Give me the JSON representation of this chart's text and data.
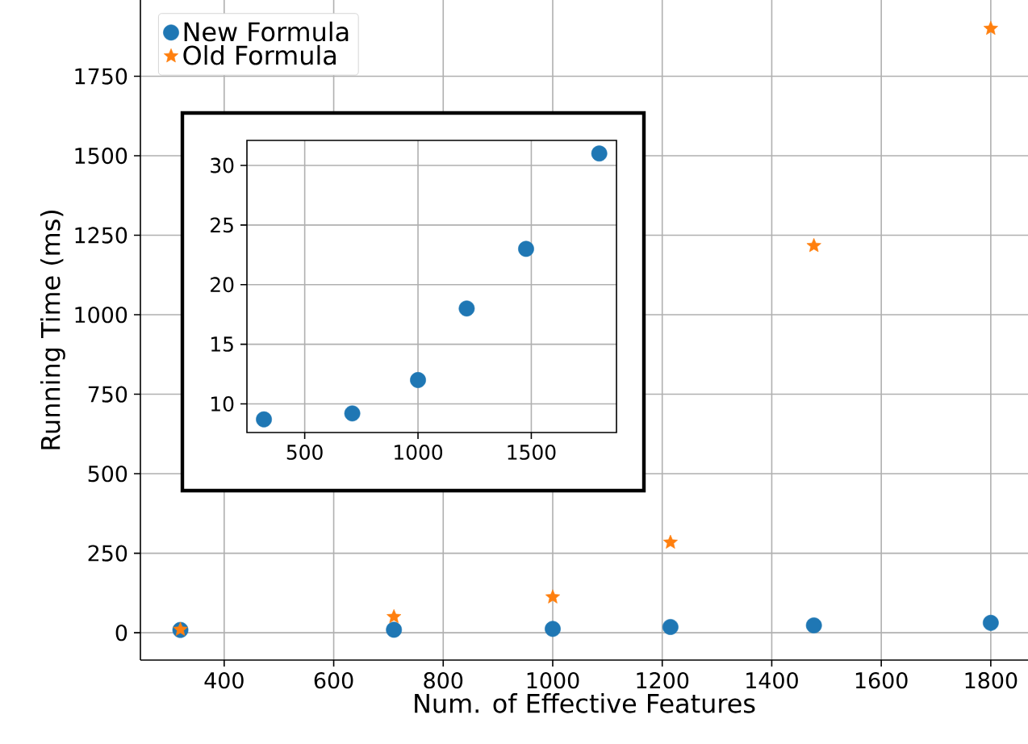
{
  "chart_data": [
    {
      "type": "scatter",
      "xlabel": "Num. of Effective Features",
      "ylabel": "Running Time (ms)",
      "x": [
        320,
        710,
        1000,
        1215,
        1477,
        1800
      ],
      "series": [
        {
          "name": "New Formula",
          "color": "#1f77b4",
          "marker": "circle",
          "values": [
            8.7,
            9.2,
            12,
            18,
            23,
            31
          ]
        },
        {
          "name": "Old  Formula",
          "color": "#ff7f0e",
          "marker": "star",
          "values": [
            10,
            50,
            112,
            284,
            1217,
            1900
          ]
        }
      ],
      "xlim": [
        247,
        1868
      ],
      "ylim": [
        -86,
        1990
      ],
      "xticks": [
        400,
        600,
        800,
        1000,
        1200,
        1400,
        1600,
        1800
      ],
      "yticks": [
        0,
        250,
        500,
        750,
        1000,
        1250,
        1500,
        1750
      ],
      "grid": true,
      "legend": "top left"
    },
    {
      "type": "scatter",
      "x": [
        320,
        710,
        1000,
        1215,
        1477,
        1800
      ],
      "series": [
        {
          "color": "#1f77b4",
          "marker": "circle",
          "values": [
            8.7,
            9.2,
            12,
            18,
            23,
            31
          ]
        }
      ],
      "xlim": [
        245,
        1876
      ],
      "ylim": [
        7.6,
        32.1
      ],
      "xticks": [
        500,
        1000,
        1500
      ],
      "yticks": [
        10,
        15,
        20,
        25,
        30
      ],
      "grid": true
    }
  ]
}
